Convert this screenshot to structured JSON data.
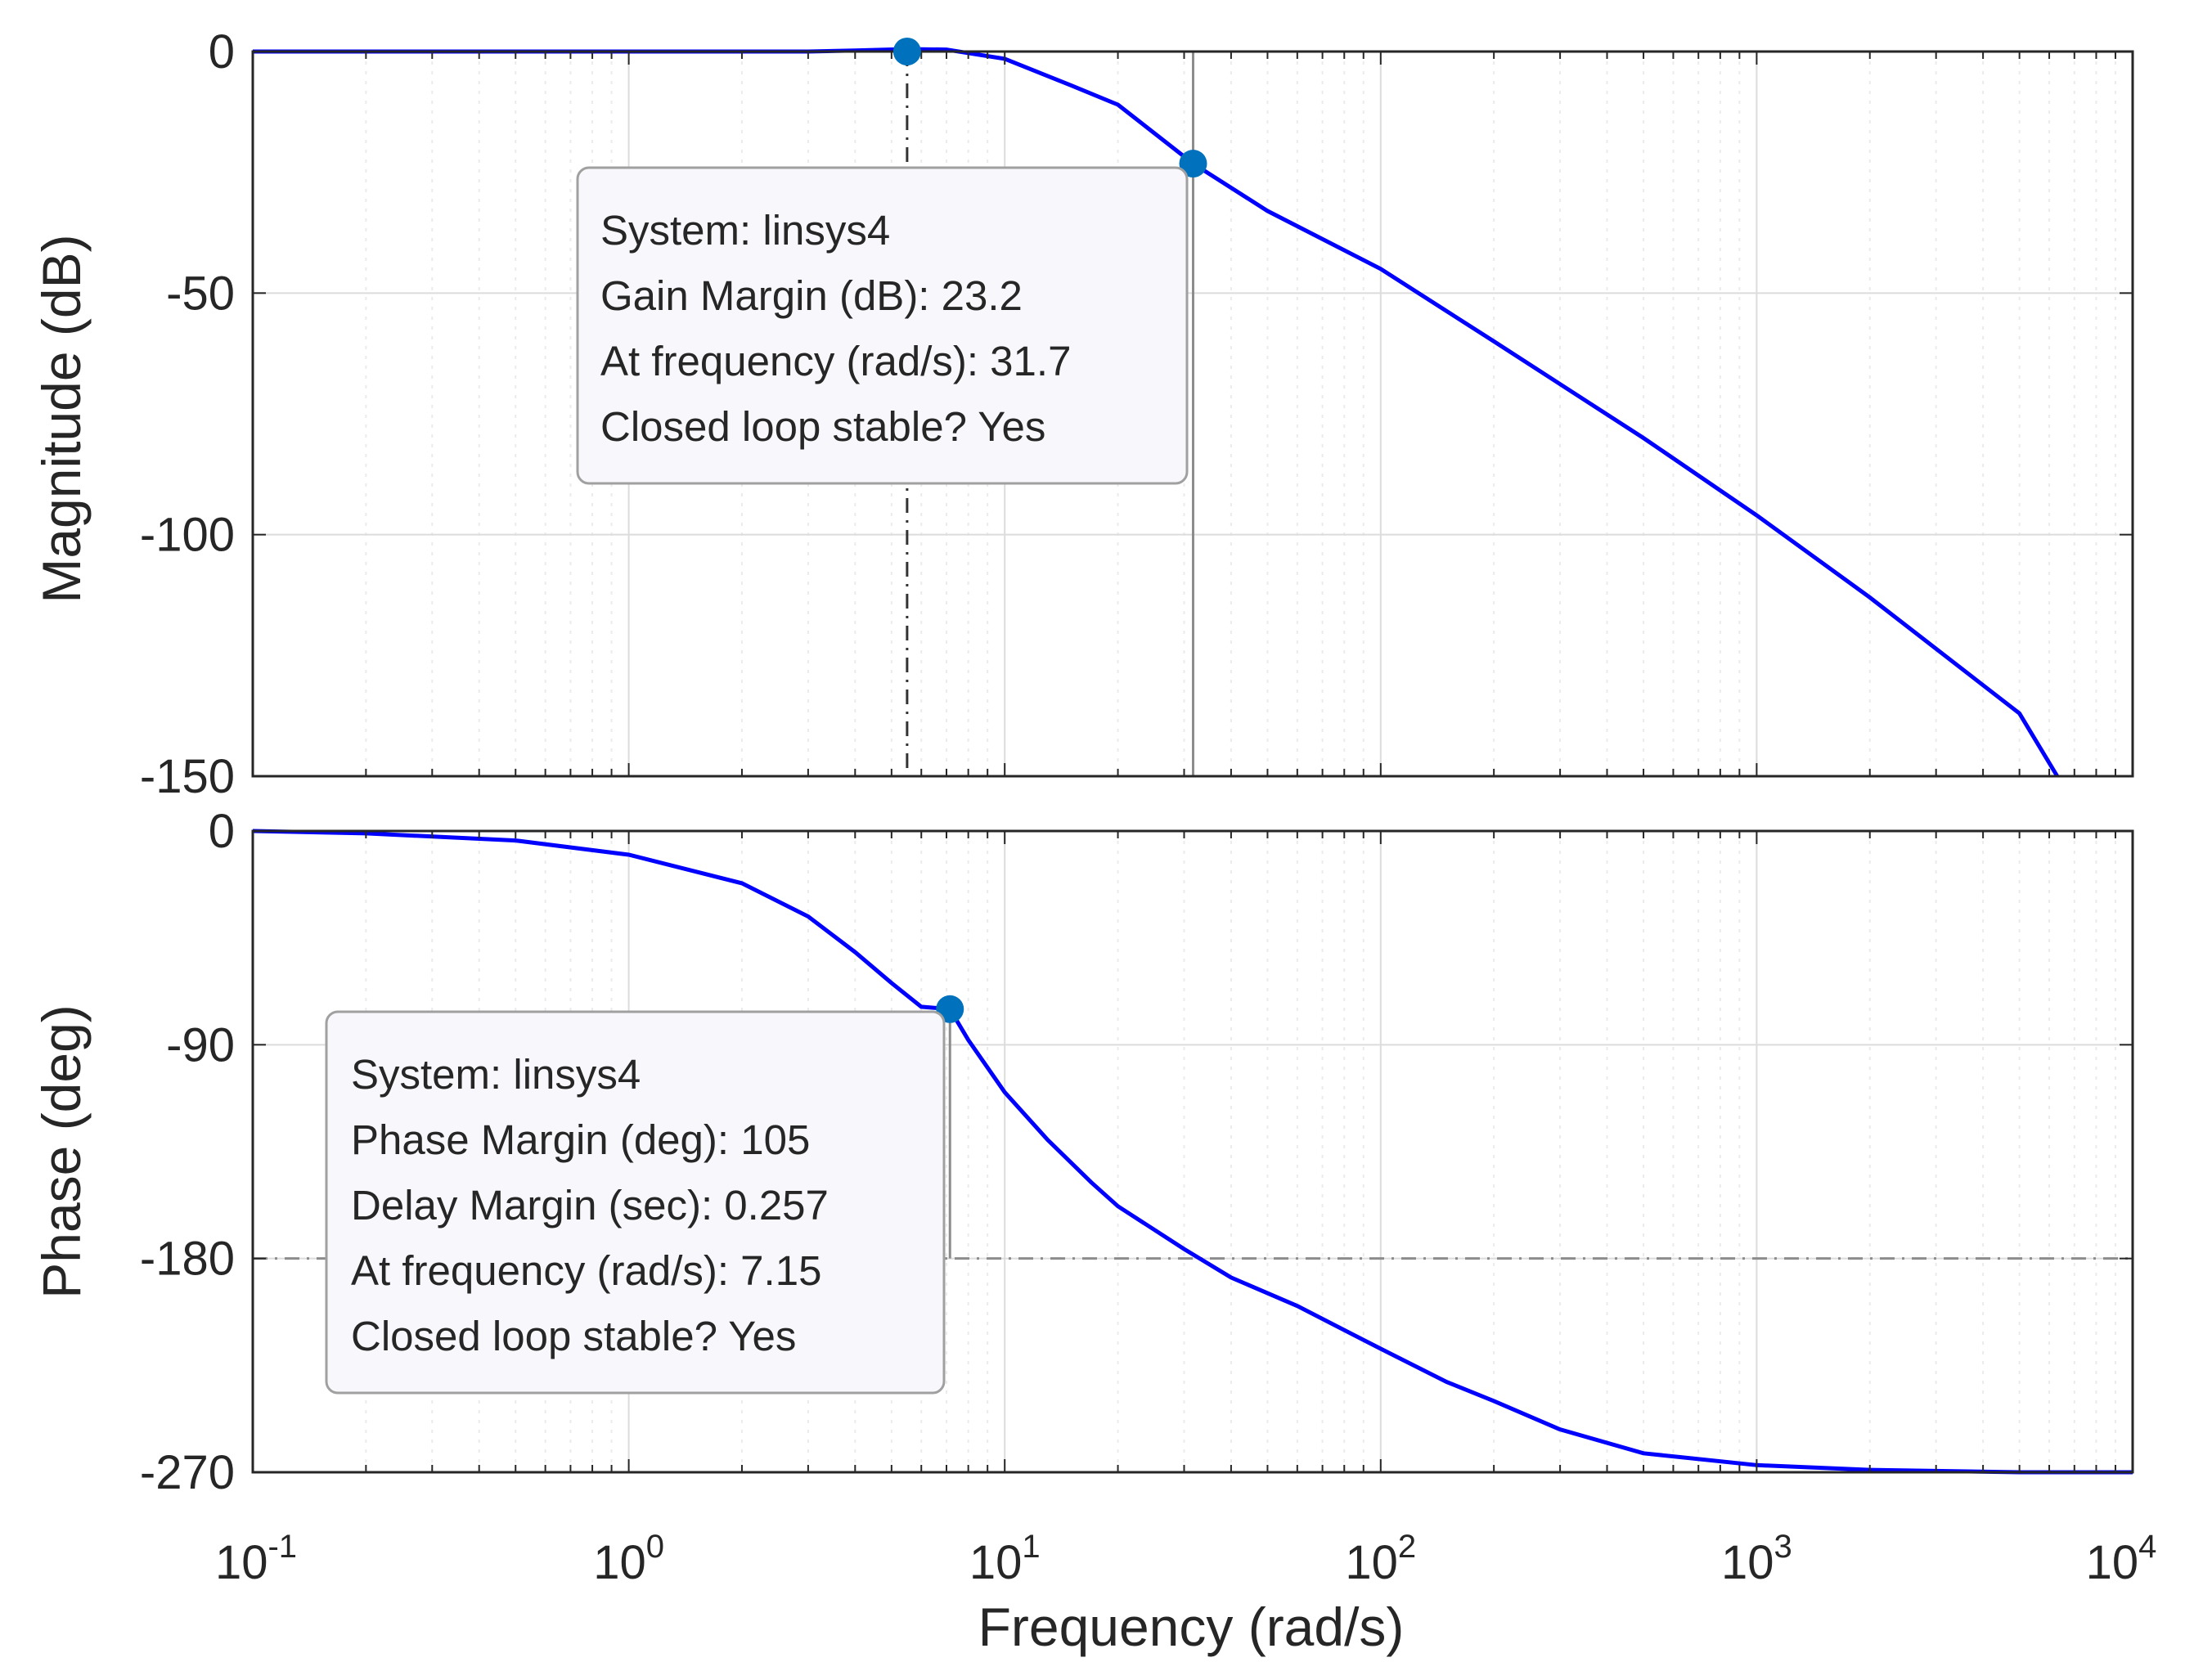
{
  "chart_data": [
    {
      "type": "line",
      "name": "magnitude-plot",
      "ylabel": "Magnitude (dB)",
      "xscale": "log",
      "xlim": [
        0.1,
        10000
      ],
      "ylim": [
        -150,
        0
      ],
      "yticks": [
        0,
        -50,
        -100,
        -150
      ],
      "ytick_labels": [
        "0",
        "-50",
        "-100",
        "-150"
      ],
      "grid": true,
      "series": [
        {
          "name": "linsys4",
          "color": "#0000ff",
          "x": [
            0.1,
            0.3,
            1,
            2,
            3,
            4,
            5.5,
            7,
            10,
            15,
            20,
            31.7,
            50,
            100,
            200,
            500,
            1000,
            2000,
            5000,
            6300
          ],
          "y": [
            0,
            0,
            0,
            0,
            0,
            0.2,
            0.5,
            0.4,
            -1.5,
            -7,
            -11,
            -23.2,
            -33,
            -45,
            -60,
            -80,
            -96,
            -113,
            -137,
            -150
          ]
        }
      ],
      "markers": [
        {
          "x": 5.5,
          "y": 0
        },
        {
          "x": 31.7,
          "y": -23.2
        }
      ],
      "reference_lines": [
        {
          "orientation": "vertical",
          "x": 5.5,
          "style": "dash-dot"
        },
        {
          "orientation": "vertical",
          "x": 31.7,
          "style": "solid"
        }
      ],
      "datatip": {
        "lines": [
          "System: linsys4",
          "Gain Margin (dB): 23.2",
          "At frequency (rad/s): 31.7",
          "Closed loop stable? Yes"
        ]
      }
    },
    {
      "type": "line",
      "name": "phase-plot",
      "ylabel": "Phase (deg)",
      "xlabel": "Frequency  (rad/s)",
      "xscale": "log",
      "xlim": [
        0.1,
        10000
      ],
      "ylim": [
        -270,
        0
      ],
      "yticks": [
        0,
        -90,
        -180,
        -270
      ],
      "ytick_labels": [
        "0",
        "-90",
        "-180",
        "-270"
      ],
      "xtick_base": "10",
      "xtick_exponents": [
        "-1",
        "0",
        "1",
        "2",
        "3",
        "4"
      ],
      "grid": true,
      "series": [
        {
          "name": "linsys4",
          "color": "#0000ff",
          "x": [
            0.1,
            0.2,
            0.5,
            1,
            2,
            3,
            4,
            5,
            6,
            7.15,
            8,
            10,
            13,
            17,
            20,
            30,
            40,
            60,
            100,
            150,
            200,
            300,
            500,
            1000,
            2000,
            5000,
            10000
          ],
          "y": [
            0,
            -1,
            -4,
            -10,
            -22,
            -36,
            -51,
            -64,
            -74,
            -75,
            -88,
            -110,
            -130,
            -148,
            -158,
            -176,
            -188,
            -200,
            -218,
            -232,
            -240,
            -252,
            -262,
            -267,
            -269,
            -270,
            -270
          ]
        }
      ],
      "markers": [
        {
          "x": 7.15,
          "y": -75
        }
      ],
      "reference_lines": [
        {
          "orientation": "horizontal",
          "y": -180,
          "style": "dash-dot"
        },
        {
          "orientation": "vertical",
          "x": 7.15,
          "style": "solid"
        }
      ],
      "datatip": {
        "lines": [
          "System: linsys4",
          "Phase Margin (deg): 105",
          "Delay Margin (sec): 0.257",
          "At frequency (rad/s): 7.15",
          "Closed loop stable? Yes"
        ]
      }
    }
  ],
  "colors": {
    "curve": "#0000ff",
    "marker": "#0072bd",
    "grid": "#e6e6e6",
    "axis": "#262626",
    "tip_bg": "#f8f8fc",
    "tip_border": "#a0a0a0",
    "ref_line": "#8c8c8c"
  }
}
